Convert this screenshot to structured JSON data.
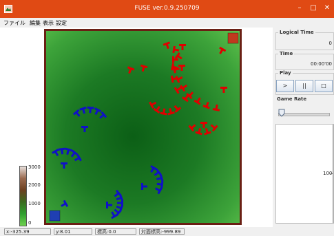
{
  "window": {
    "title": "FUSE ver.0.9.250709",
    "minimize": "–",
    "maximize": "□",
    "close": "✕"
  },
  "menu": [
    "ファイル",
    "編集",
    "表示",
    "設定"
  ],
  "map": {
    "border_color": "#6a1f14",
    "red_unit_color": "#e00000",
    "blue_unit_color": "#1010c8",
    "red_base_color": "#c0391e",
    "blue_base_color": "#1f3fb3"
  },
  "legend": {
    "labels": [
      "3000",
      "2000",
      "1000",
      "0"
    ]
  },
  "status": {
    "x": "x:-325.39",
    "y": "y:8.01",
    "elevation": "標高:0.0",
    "relative_elevation": "対面標高:-999.89"
  },
  "panel": {
    "logical_time": {
      "label": "Logical Time",
      "value": "0"
    },
    "time": {
      "label": "Time",
      "value": "00:00'00"
    },
    "play": {
      "label": "Play",
      "buttons": [
        ">",
        "||",
        "□"
      ]
    },
    "game_rate": {
      "label": "Game Rate"
    },
    "chart": {
      "tick_label": "100"
    }
  }
}
